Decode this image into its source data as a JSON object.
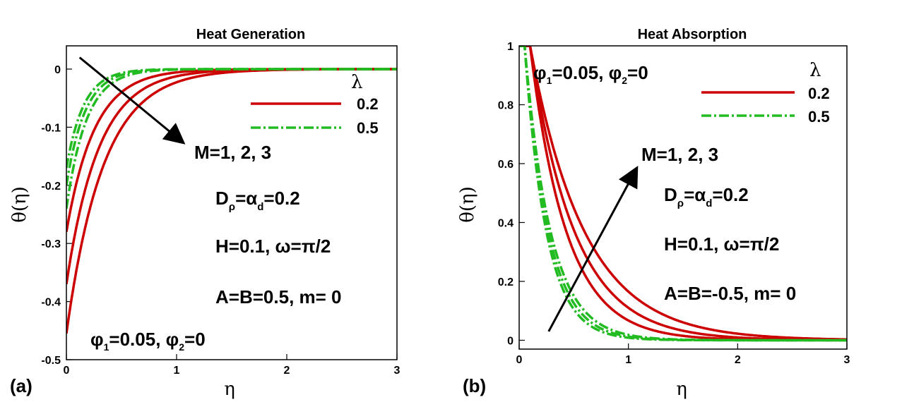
{
  "chart_data": [
    {
      "type": "line",
      "panel_label": "(a)",
      "title": "Heat Generation",
      "xlabel": "η",
      "ylabel": "θ(η)",
      "xlim": [
        0,
        3
      ],
      "ylim": [
        -0.5,
        0.04
      ],
      "xticks": [
        0,
        1,
        2,
        3
      ],
      "xtick_labels": [
        "0",
        "1",
        "2",
        "3"
      ],
      "yticks": [
        0,
        -0.1,
        -0.2,
        -0.3,
        -0.4,
        -0.5
      ],
      "ytick_labels": [
        "0",
        "-0.1",
        "-0.2",
        "-0.3",
        "-0.4",
        "-0.5"
      ],
      "legend": {
        "title": "λ",
        "entries": [
          "0.2",
          "0.5"
        ],
        "position": "top-right"
      },
      "series": [
        {
          "name": "λ=0.2, M=1",
          "style": "solid",
          "color": "#cc0000",
          "theta0": -0.28,
          "rate": 3.9,
          "overshoot": 0.0
        },
        {
          "name": "λ=0.2, M=2",
          "style": "solid",
          "color": "#cc0000",
          "theta0": -0.37,
          "rate": 3.4,
          "overshoot": 0.0
        },
        {
          "name": "λ=0.2, M=3",
          "style": "solid",
          "color": "#cc0000",
          "theta0": -0.455,
          "rate": 3.0,
          "overshoot": 0.0
        },
        {
          "name": "λ=0.5, M=1",
          "style": "dashdot",
          "color": "#22bb22",
          "theta0": -0.17,
          "rate": 6.0,
          "overshoot": 0.06
        },
        {
          "name": "λ=0.5, M=2",
          "style": "dashdot",
          "color": "#22bb22",
          "theta0": -0.2,
          "rate": 5.6,
          "overshoot": 0.06
        },
        {
          "name": "λ=0.5, M=3",
          "style": "dashdot",
          "color": "#22bb22",
          "theta0": -0.24,
          "rate": 5.2,
          "overshoot": 0.06
        }
      ],
      "arrow": {
        "from": [
          0.12,
          0.02
        ],
        "to": [
          1.05,
          -0.125
        ],
        "label": "M=1, 2, 3"
      },
      "annotations": {
        "d_rho_prefix": "D",
        "d_rho_sub": "ρ",
        "d_mid": "=α",
        "d_sub2": "d",
        "d_suffix": "=0.2",
        "h_omega": "H=0.1, ω=π/2",
        "ab_m": "A=B=0.5, m= 0",
        "phi_prefix": "φ",
        "phi1_sub": "1",
        "phi_mid": "=0.05, φ",
        "phi2_sub": "2",
        "phi_suffix": "=0"
      }
    },
    {
      "type": "line",
      "panel_label": "(b)",
      "title": "Heat Absorption",
      "xlabel": "η",
      "ylabel": "θ(η)",
      "xlim": [
        0,
        3
      ],
      "ylim": [
        -0.03,
        1.0
      ],
      "xticks": [
        0,
        1,
        2,
        3
      ],
      "xtick_labels": [
        "0",
        "1",
        "2",
        "3"
      ],
      "yticks": [
        0,
        0.2,
        0.4,
        0.6,
        0.8,
        1
      ],
      "ytick_labels": [
        "0",
        "0.2",
        "0.4",
        "0.6",
        "0.8",
        "1"
      ],
      "legend": {
        "title": "λ",
        "entries": [
          "0.2",
          "0.5"
        ],
        "position": "top-right"
      },
      "series": [
        {
          "name": "λ=0.2, M=1",
          "style": "solid",
          "color": "#cc0000",
          "x0": 0.1,
          "rate": 3.0
        },
        {
          "name": "λ=0.2, M=2",
          "style": "solid",
          "color": "#cc0000",
          "x0": 0.1,
          "rate": 2.45
        },
        {
          "name": "λ=0.2, M=3",
          "style": "solid",
          "color": "#cc0000",
          "x0": 0.1,
          "rate": 2.0
        },
        {
          "name": "λ=0.5, M=1",
          "style": "dashdot",
          "color": "#22bb22",
          "x0": 0.05,
          "rate": 5.0
        },
        {
          "name": "λ=0.5, M=2",
          "style": "dashdot",
          "color": "#22bb22",
          "x0": 0.05,
          "rate": 4.6
        },
        {
          "name": "λ=0.5, M=3",
          "style": "dashdot",
          "color": "#22bb22",
          "x0": 0.05,
          "rate": 4.2
        }
      ],
      "arrow": {
        "from": [
          0.27,
          0.03
        ],
        "to": [
          1.07,
          0.58
        ],
        "label": "M=1, 2, 3"
      },
      "annotations": {
        "d_rho_prefix": "D",
        "d_rho_sub": "ρ",
        "d_mid": "=α",
        "d_sub2": "d",
        "d_suffix": "=0.2",
        "h_omega": "H=0.1, ω=π/2",
        "ab_m": "A=B=-0.5, m= 0",
        "phi_prefix": "φ",
        "phi1_sub": "1",
        "phi_mid": "=0.05, φ",
        "phi2_sub": "2",
        "phi_suffix": "=0"
      }
    }
  ]
}
